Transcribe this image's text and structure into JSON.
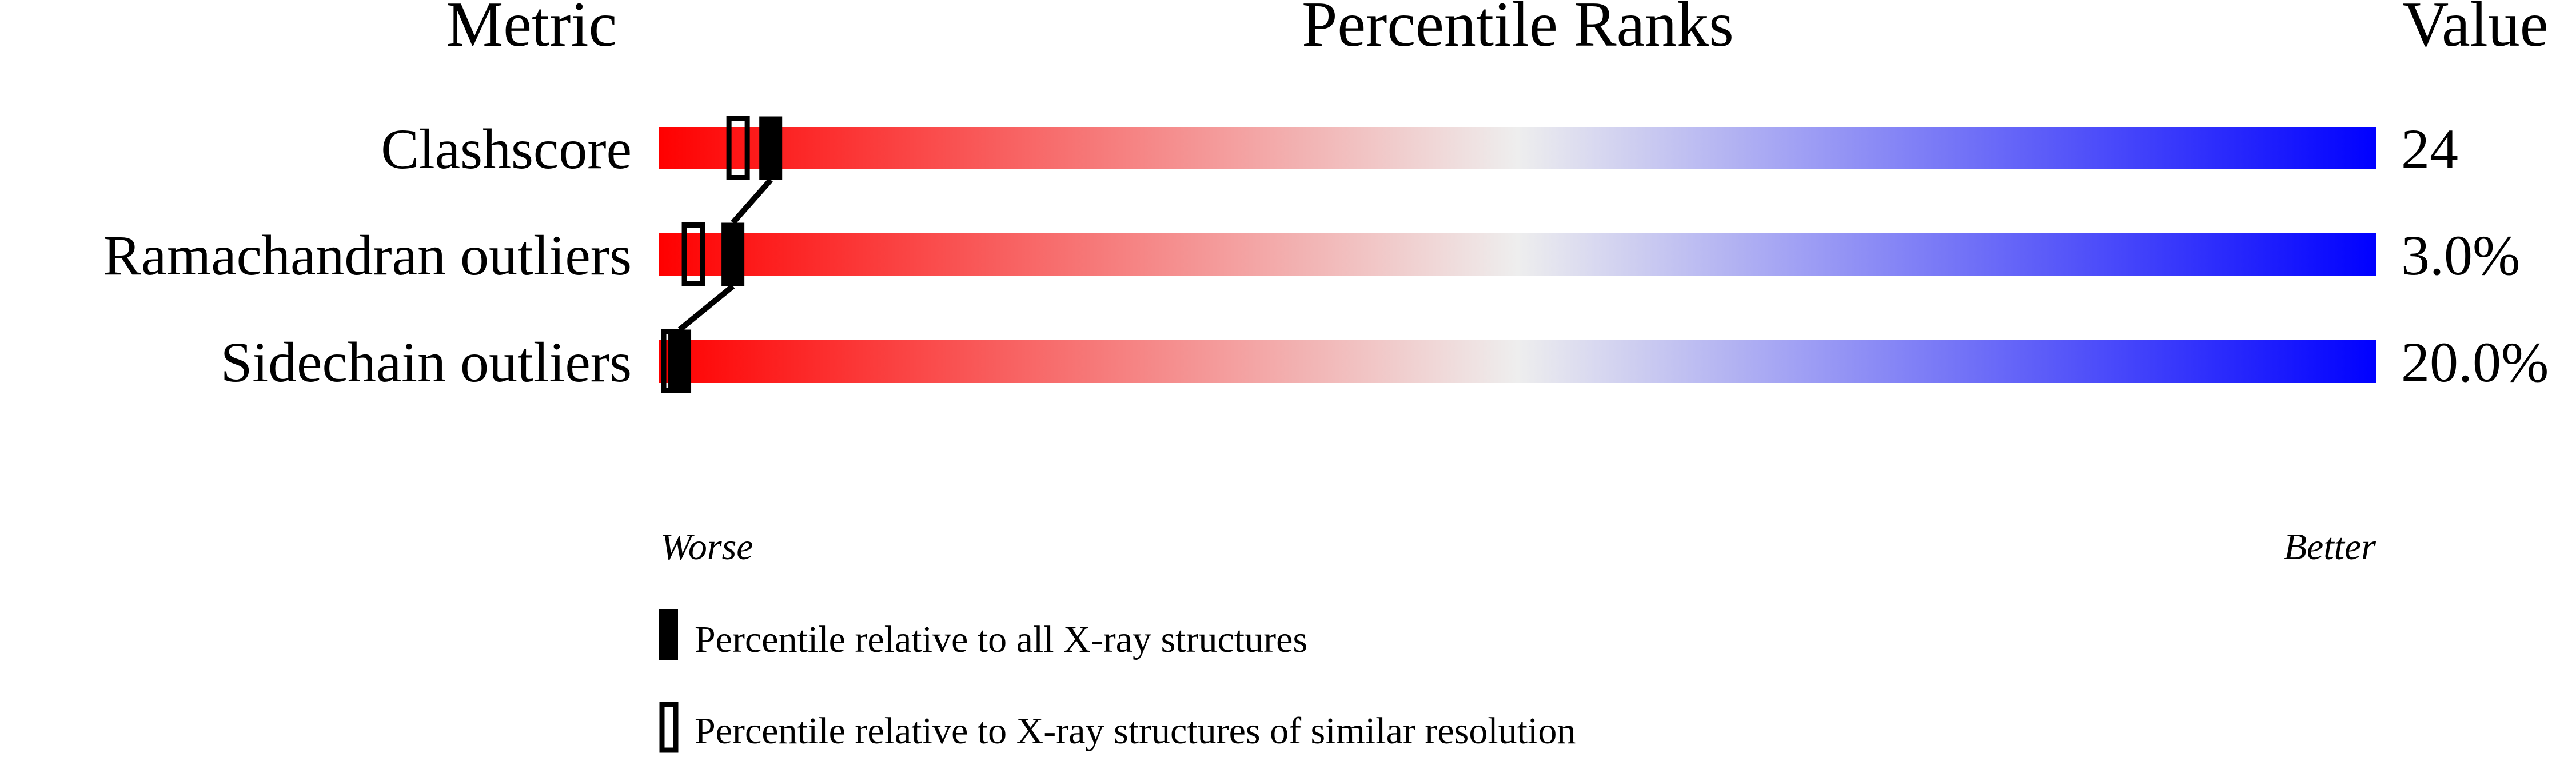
{
  "chart_data": {
    "type": "percentile-bar",
    "headers": {
      "metric": "Metric",
      "ranks": "Percentile Ranks",
      "value": "Value"
    },
    "axis": {
      "left_label": "Worse",
      "right_label": "Better",
      "range": [
        0,
        100
      ]
    },
    "gradient_colors": {
      "worse": "#ff0000",
      "middle": "#eeeeee",
      "better": "#0000ff"
    },
    "rows": [
      {
        "metric": "Clashscore",
        "value": "24",
        "percentile_all": 6.5,
        "percentile_similar": 4.6
      },
      {
        "metric": "Ramachandran outliers",
        "value": "3.0%",
        "percentile_all": 4.3,
        "percentile_similar": 2.0
      },
      {
        "metric": "Sidechain outliers",
        "value": "20.0%",
        "percentile_all": 1.2,
        "percentile_similar": 0.8
      }
    ],
    "legend": [
      {
        "marker": "filled",
        "label": "Percentile relative to all X-ray structures"
      },
      {
        "marker": "open",
        "label": "Percentile relative to X-ray structures of similar resolution"
      }
    ]
  }
}
